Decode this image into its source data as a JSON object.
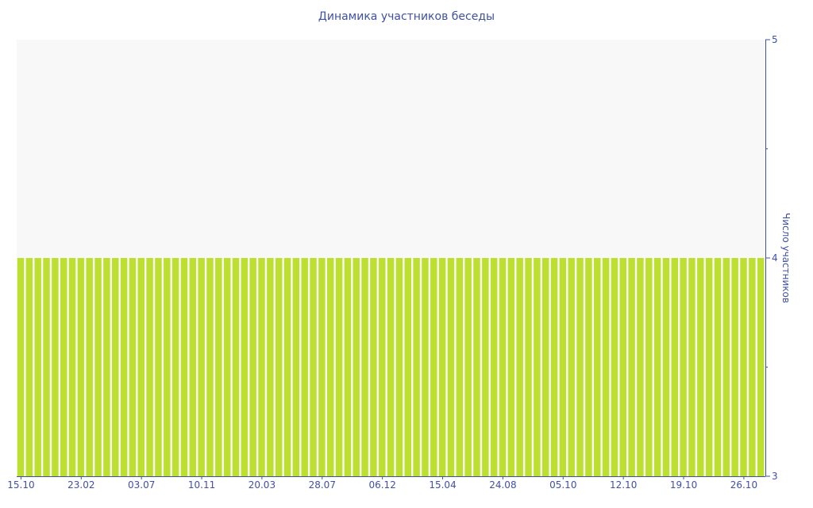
{
  "chart_data": {
    "type": "bar",
    "title": "Динамика участников беседы",
    "ylabel": "Число участников",
    "xlabel": "",
    "ylim": [
      3,
      5
    ],
    "y_ticks": [
      "3",
      "4",
      "5"
    ],
    "y_axis_side": "right",
    "x_tick_labels": [
      "15.10",
      "23.02",
      "03.07",
      "10.11",
      "20.03",
      "28.07",
      "06.12",
      "15.04",
      "24.08",
      "05.10",
      "12.10",
      "19.10",
      "26.10"
    ],
    "x_tick_every": 7,
    "values": [
      4,
      4,
      4,
      4,
      4,
      4,
      4,
      4,
      4,
      4,
      4,
      4,
      4,
      4,
      4,
      4,
      4,
      4,
      4,
      4,
      4,
      4,
      4,
      4,
      4,
      4,
      4,
      4,
      4,
      4,
      4,
      4,
      4,
      4,
      4,
      4,
      4,
      4,
      4,
      4,
      4,
      4,
      4,
      4,
      4,
      4,
      4,
      4,
      4,
      4,
      4,
      4,
      4,
      4,
      4,
      4,
      4,
      4,
      4,
      4,
      4,
      4,
      4,
      4,
      4,
      4,
      4,
      4,
      4,
      4,
      4,
      4,
      4,
      4,
      4,
      4,
      4,
      4,
      4,
      4,
      4,
      4,
      4,
      4,
      4,
      4,
      4
    ],
    "bar_color": "#bde030",
    "plot_background": "#f8f8f8",
    "axis_color": "#3f51a5",
    "grid": false,
    "legend": "none"
  }
}
